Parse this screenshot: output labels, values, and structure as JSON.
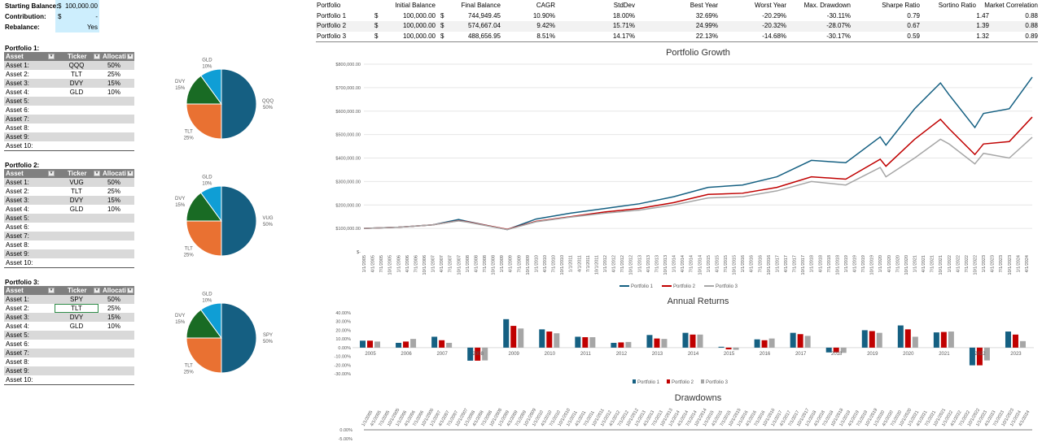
{
  "settings": {
    "starting_balance_label": "Starting Balance:",
    "starting_balance_currency": "$",
    "starting_balance": "100,000.00",
    "contribution_label": "Contribution:",
    "contribution_currency": "$",
    "contribution": "-",
    "rebalance_label": "Rebalance:",
    "rebalance": "Yes"
  },
  "portfolios": [
    {
      "title": "Portfolio 1:",
      "headers": [
        "Asset",
        "Ticker",
        "Allocatio"
      ],
      "rows": [
        [
          "Asset 1:",
          "QQQ",
          "50%"
        ],
        [
          "Asset 2:",
          "TLT",
          "25%"
        ],
        [
          "Asset 3:",
          "DVY",
          "15%"
        ],
        [
          "Asset 4:",
          "GLD",
          "10%"
        ],
        [
          "Asset 5:",
          "",
          ""
        ],
        [
          "Asset 6:",
          "",
          ""
        ],
        [
          "Asset 7:",
          "",
          ""
        ],
        [
          "Asset 8:",
          "",
          ""
        ],
        [
          "Asset 9:",
          "",
          ""
        ],
        [
          "Asset 10:",
          "",
          ""
        ]
      ],
      "pie": {
        "labels": [
          "QQQ",
          "TLT",
          "DVY",
          "GLD"
        ],
        "values": [
          50,
          25,
          15,
          10
        ],
        "value_labels": [
          "50%",
          "25%",
          "15%",
          "10%"
        ]
      }
    },
    {
      "title": "Portfolio 2:",
      "headers": [
        "Asset",
        "Ticker",
        "Allocatio"
      ],
      "rows": [
        [
          "Asset 1:",
          "VUG",
          "50%"
        ],
        [
          "Asset 2:",
          "TLT",
          "25%"
        ],
        [
          "Asset 3:",
          "DVY",
          "15%"
        ],
        [
          "Asset 4:",
          "GLD",
          "10%"
        ],
        [
          "Asset 5:",
          "",
          ""
        ],
        [
          "Asset 6:",
          "",
          ""
        ],
        [
          "Asset 7:",
          "",
          ""
        ],
        [
          "Asset 8:",
          "",
          ""
        ],
        [
          "Asset 9:",
          "",
          ""
        ],
        [
          "Asset 10:",
          "",
          ""
        ]
      ],
      "pie": {
        "labels": [
          "VUG",
          "TLT",
          "DVY",
          "GLD"
        ],
        "values": [
          50,
          25,
          15,
          10
        ],
        "value_labels": [
          "50%",
          "25%",
          "15%",
          "10%"
        ]
      }
    },
    {
      "title": "Portfolio 3:",
      "headers": [
        "Asset",
        "Ticker",
        "Allocatio"
      ],
      "rows": [
        [
          "Asset 1:",
          "SPY",
          "50%"
        ],
        [
          "Asset 2:",
          "TLT",
          "25%"
        ],
        [
          "Asset 3:",
          "DVY",
          "15%"
        ],
        [
          "Asset 4:",
          "GLD",
          "10%"
        ],
        [
          "Asset 5:",
          "",
          ""
        ],
        [
          "Asset 6:",
          "",
          ""
        ],
        [
          "Asset 7:",
          "",
          ""
        ],
        [
          "Asset 8:",
          "",
          ""
        ],
        [
          "Asset 9:",
          "",
          ""
        ],
        [
          "Asset 10:",
          "",
          ""
        ]
      ],
      "pie": {
        "labels": [
          "SPY",
          "TLT",
          "DVY",
          "GLD"
        ],
        "values": [
          50,
          25,
          15,
          10
        ],
        "value_labels": [
          "50%",
          "25%",
          "15%",
          "10%"
        ]
      }
    }
  ],
  "pie_colors": [
    "#155f82",
    "#e97132",
    "#196b24",
    "#0f9ed5"
  ],
  "stats": {
    "headers": [
      "Portfolio",
      "Initial Balance",
      "Final Balance",
      "CAGR",
      "StdDev",
      "Best Year",
      "Worst Year",
      "Max. Drawdown",
      "Sharpe Ratio",
      "Sortino Ratio",
      "Market Correlation"
    ],
    "rows": [
      [
        "Portfolio 1",
        "$",
        "100,000.00",
        "$",
        "744,949.45",
        "10.90%",
        "18.00%",
        "32.69%",
        "-20.29%",
        "-30.11%",
        "0.79",
        "1.47",
        "0.88"
      ],
      [
        "Portfolio 2",
        "$",
        "100,000.00",
        "$",
        "574,667.04",
        "9.42%",
        "15.71%",
        "24.99%",
        "-20.32%",
        "-28.07%",
        "0.67",
        "1.39",
        "0.88"
      ],
      [
        "Portfolio 3",
        "$",
        "100,000.00",
        "$",
        "488,656.95",
        "8.51%",
        "14.17%",
        "22.13%",
        "-14.68%",
        "-30.17%",
        "0.59",
        "1.32",
        "0.89"
      ]
    ]
  },
  "chart_data": [
    {
      "type": "line",
      "title": "Portfolio Growth",
      "ylim": [
        0,
        800000
      ],
      "y_ticks": [
        "$-",
        "$100,000.00",
        "$200,000.00",
        "$300,000.00",
        "$400,000.00",
        "$500,000.00",
        "$600,000.00",
        "$700,000.00",
        "$800,000.00"
      ],
      "x": [
        "1/1/2005",
        "1/1/2006",
        "1/1/2007",
        "10/1/2007",
        "1/1/2008",
        "3/1/2009",
        "1/1/2010",
        "1/1/2011",
        "1/1/2012",
        "1/1/2013",
        "1/1/2014",
        "1/1/2015",
        "1/1/2016",
        "1/1/2017",
        "1/1/2018",
        "1/1/2019",
        "1/1/2020",
        "3/1/2020",
        "1/1/2021",
        "10/1/2021",
        "1/1/2022",
        "10/1/2022",
        "1/1/2023",
        "10/1/2023",
        "6/1/2024"
      ],
      "series": [
        {
          "name": "Portfolio 1",
          "color": "#156082",
          "values": [
            100000,
            105000,
            115000,
            138000,
            130000,
            95000,
            140000,
            165000,
            185000,
            205000,
            235000,
            275000,
            285000,
            320000,
            390000,
            380000,
            490000,
            455000,
            610000,
            720000,
            670000,
            530000,
            590000,
            610000,
            744949
          ]
        },
        {
          "name": "Portfolio 2",
          "color": "#c00000",
          "values": [
            100000,
            105000,
            115000,
            133000,
            128000,
            96000,
            130000,
            150000,
            170000,
            185000,
            210000,
            245000,
            250000,
            275000,
            320000,
            310000,
            395000,
            365000,
            480000,
            565000,
            525000,
            415000,
            460000,
            470000,
            574667
          ]
        },
        {
          "name": "Portfolio 3",
          "color": "#a6a6a6",
          "values": [
            100000,
            105000,
            115000,
            132000,
            127000,
            95000,
            128000,
            148000,
            165000,
            178000,
            200000,
            230000,
            235000,
            260000,
            300000,
            285000,
            360000,
            320000,
            400000,
            480000,
            460000,
            375000,
            420000,
            400000,
            488657
          ]
        }
      ],
      "legend": "bottom",
      "grid": true
    },
    {
      "type": "bar",
      "title": "Annual Returns",
      "ylim": [
        -30,
        40
      ],
      "y_ticks": [
        "-30.00%",
        "-20.00%",
        "-10.00%",
        "0.00%",
        "10.00%",
        "20.00%",
        "30.00%",
        "40.00%"
      ],
      "categories": [
        "2005",
        "2006",
        "2007",
        "2008",
        "2009",
        "2010",
        "2011",
        "2012",
        "2013",
        "2014",
        "2015",
        "2016",
        "2017",
        "2018",
        "2019",
        "2020",
        "2021",
        "2022",
        "2023"
      ],
      "series": [
        {
          "name": "Portfolio 1",
          "color": "#156082",
          "values": [
            8,
            5.5,
            12.5,
            -15,
            32.7,
            21,
            12.5,
            5.5,
            14.5,
            17,
            1,
            9.5,
            17,
            -5.5,
            20,
            25.5,
            17.5,
            -20.3,
            18.5
          ]
        },
        {
          "name": "Portfolio 2",
          "color": "#c00000",
          "values": [
            8,
            7,
            8.5,
            -15,
            25,
            18.5,
            12,
            6,
            10.5,
            15,
            -2,
            8.5,
            15.5,
            -5.5,
            19,
            21,
            18,
            -20.3,
            15
          ]
        },
        {
          "name": "Portfolio 3",
          "color": "#a6a6a6",
          "values": [
            7,
            10,
            5.5,
            -14.7,
            22,
            16.5,
            12,
            6.5,
            10,
            15,
            -2.5,
            10.5,
            13.5,
            -6,
            17,
            12.5,
            18.5,
            -14.7,
            7.5
          ]
        }
      ],
      "legend": "bottom"
    },
    {
      "type": "line",
      "title": "Drawdowns",
      "y_ticks": [
        "0.00%",
        "-5.00%"
      ]
    }
  ],
  "x_ticks": [
    "1/1/2005",
    "4/1/2005",
    "7/1/2005",
    "10/1/2005",
    "1/1/2006",
    "4/1/2006",
    "7/1/2006",
    "10/1/2006",
    "1/1/2007",
    "4/1/2007",
    "7/1/2007",
    "10/1/2007",
    "1/1/2008",
    "4/1/2008",
    "7/1/2008",
    "10/1/2008",
    "1/1/2009",
    "4/1/2009",
    "7/1/2009",
    "10/1/2009",
    "1/1/2010",
    "4/1/2010",
    "7/1/2010",
    "10/1/2010",
    "1/1/2011",
    "4/1/2011",
    "7/1/2011",
    "10/1/2011",
    "1/1/2012",
    "4/1/2012",
    "7/1/2012",
    "10/1/2012",
    "1/1/2013",
    "4/1/2013",
    "7/1/2013",
    "10/1/2013",
    "1/1/2014",
    "4/1/2014",
    "7/1/2014",
    "10/1/2014",
    "1/1/2015",
    "4/1/2015",
    "7/1/2015",
    "10/1/2015",
    "1/1/2016",
    "4/1/2016",
    "7/1/2016",
    "10/1/2016",
    "1/1/2017",
    "4/1/2017",
    "7/1/2017",
    "10/1/2017",
    "1/1/2018",
    "4/1/2018",
    "7/1/2018",
    "10/1/2018",
    "1/1/2019",
    "4/1/2019",
    "7/1/2019",
    "10/1/2019",
    "1/1/2020",
    "4/1/2020",
    "7/1/2020",
    "10/1/2020",
    "1/1/2021",
    "4/1/2021",
    "7/1/2021",
    "10/1/2021",
    "1/1/2022",
    "4/1/2022",
    "7/1/2022",
    "10/1/2022",
    "1/1/2023",
    "4/1/2023",
    "7/1/2023",
    "10/1/2023",
    "1/1/2024",
    "4/1/2024"
  ]
}
